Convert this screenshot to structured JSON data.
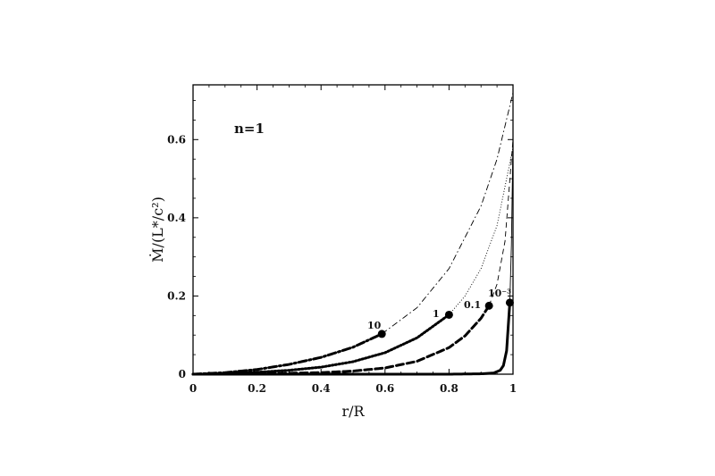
{
  "chart_data": {
    "type": "line",
    "title": "",
    "annotation": "n=1",
    "xlabel": "r/R",
    "ylabel": "Ṁ/(L*/c²)",
    "xlim": [
      0,
      1
    ],
    "ylim": [
      0,
      0.74
    ],
    "x_ticks": [
      0,
      0.2,
      0.4,
      0.6,
      0.8,
      1
    ],
    "x_tick_labels": [
      "0",
      "0.2",
      "0.4",
      "0.6",
      "0.8",
      "1"
    ],
    "y_ticks": [
      0,
      0.2,
      0.4,
      0.6
    ],
    "y_tick_labels": [
      "0",
      "0.2",
      "0.4",
      "0.6"
    ],
    "grid": false,
    "legend": "none",
    "series": [
      {
        "label": "10",
        "style": "dash-dot",
        "marker": {
          "x": 0.59,
          "y": 0.103
        },
        "points": [
          [
            0,
            0
          ],
          [
            0.1,
            0.004
          ],
          [
            0.2,
            0.012
          ],
          [
            0.3,
            0.025
          ],
          [
            0.4,
            0.043
          ],
          [
            0.5,
            0.069
          ],
          [
            0.59,
            0.103
          ],
          [
            0.7,
            0.17
          ],
          [
            0.8,
            0.27
          ],
          [
            0.9,
            0.43
          ],
          [
            0.95,
            0.55
          ],
          [
            1.0,
            0.72
          ]
        ]
      },
      {
        "label": "1",
        "style": "dotted",
        "marker": {
          "x": 0.8,
          "y": 0.152
        },
        "points": [
          [
            0,
            0
          ],
          [
            0.1,
            0.002
          ],
          [
            0.2,
            0.005
          ],
          [
            0.3,
            0.01
          ],
          [
            0.4,
            0.018
          ],
          [
            0.5,
            0.032
          ],
          [
            0.6,
            0.055
          ],
          [
            0.7,
            0.093
          ],
          [
            0.8,
            0.152
          ],
          [
            0.85,
            0.2
          ],
          [
            0.9,
            0.27
          ],
          [
            0.95,
            0.38
          ],
          [
            1.0,
            0.58
          ]
        ]
      },
      {
        "label": "0.1",
        "style": "dashed",
        "marker": {
          "x": 0.925,
          "y": 0.175
        },
        "points": [
          [
            0,
            0
          ],
          [
            0.2,
            0.001
          ],
          [
            0.4,
            0.004
          ],
          [
            0.5,
            0.008
          ],
          [
            0.6,
            0.016
          ],
          [
            0.7,
            0.033
          ],
          [
            0.8,
            0.068
          ],
          [
            0.85,
            0.098
          ],
          [
            0.9,
            0.143
          ],
          [
            0.925,
            0.175
          ],
          [
            0.95,
            0.23
          ],
          [
            0.975,
            0.34
          ],
          [
            1.0,
            0.6
          ]
        ]
      },
      {
        "label": "10⁻³",
        "style": "solid",
        "marker": {
          "x": 0.99,
          "y": 0.183
        },
        "points": [
          [
            0,
            0
          ],
          [
            0.8,
            0.0
          ],
          [
            0.9,
            0.001
          ],
          [
            0.94,
            0.003
          ],
          [
            0.96,
            0.01
          ],
          [
            0.97,
            0.022
          ],
          [
            0.98,
            0.06
          ],
          [
            0.99,
            0.183
          ],
          [
            0.995,
            0.33
          ],
          [
            1.0,
            0.6
          ]
        ]
      }
    ]
  }
}
